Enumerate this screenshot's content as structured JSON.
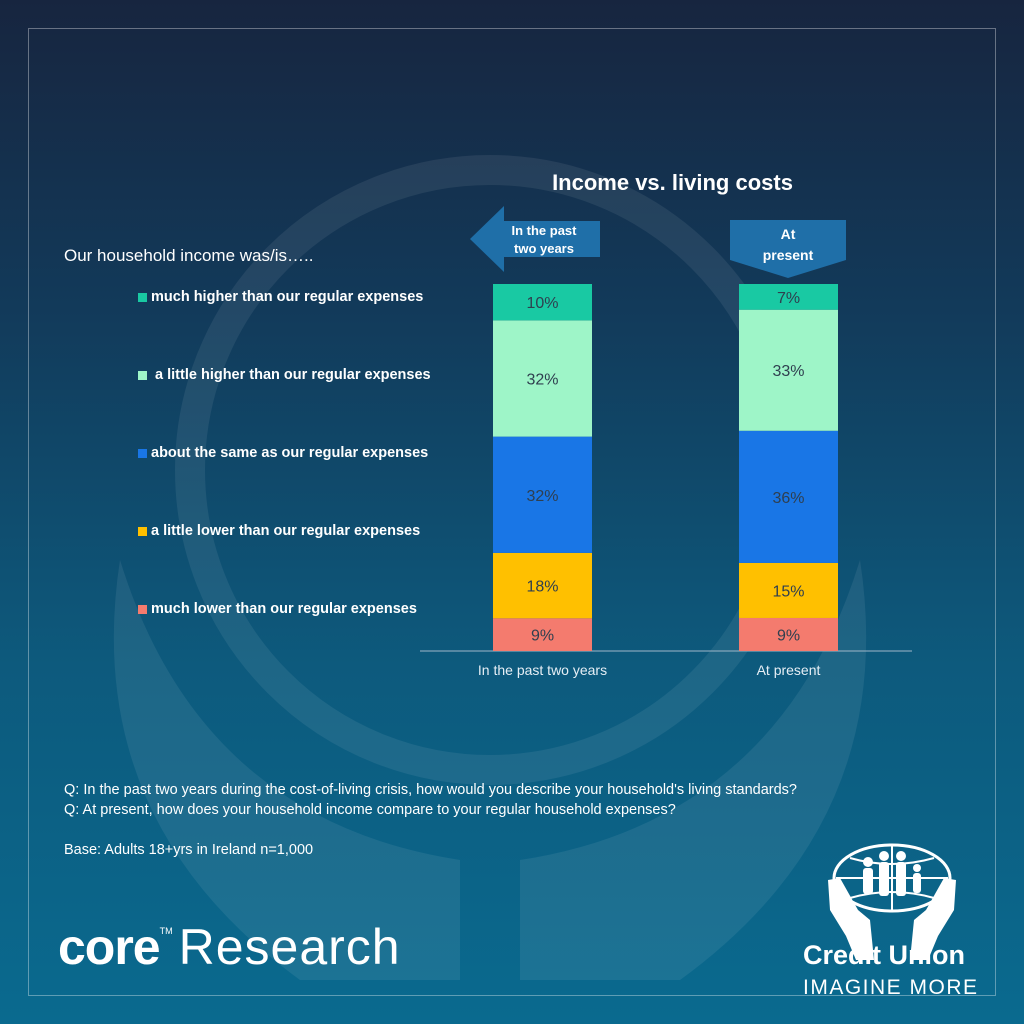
{
  "chart_data": {
    "type": "bar",
    "stacked": true,
    "title": "Income vs. living costs",
    "categories": [
      "In the past two years",
      "At present"
    ],
    "series": [
      {
        "name": "much lower than our regular expenses",
        "color": "#f47b6e",
        "values": [
          9,
          9
        ]
      },
      {
        "name": "a little lower than our regular expenses",
        "color": "#ffc000",
        "values": [
          18,
          15
        ]
      },
      {
        "name": "about the same as our regular expenses",
        "color": "#1976e6",
        "values": [
          32,
          36
        ]
      },
      {
        "name": "a little higher than our regular expenses",
        "color": "#9ef5c8",
        "values": [
          32,
          33
        ]
      },
      {
        "name": "much higher than our regular expenses",
        "color": "#19c9a3",
        "values": [
          10,
          7
        ]
      }
    ],
    "data_labels": [
      [
        "9%",
        "18%",
        "32%",
        "32%",
        "10%"
      ],
      [
        "9%",
        "15%",
        "36%",
        "33%",
        "7%"
      ]
    ],
    "ylim": [
      0,
      100
    ],
    "legend_position": "left",
    "grid": false
  },
  "legend": {
    "heading": "Our household income was/is…..",
    "items": [
      {
        "label": "much higher than our regular expenses",
        "color": "#19c9a3"
      },
      {
        "label": " a little higher than our regular expenses",
        "color": "#9ef5c8"
      },
      {
        "label": "about the same as our regular expenses",
        "color": "#1976e6"
      },
      {
        "label": "a little lower than our regular expenses",
        "color": "#ffc000"
      },
      {
        "label": "much lower than our regular expenses",
        "color": "#f47b6e"
      }
    ]
  },
  "arrows": {
    "past_line1": "In the past",
    "past_line2": "two years",
    "present_line1": "At",
    "present_line2": "present"
  },
  "notes": {
    "q1": "Q: In the past two years during the cost-of-living crisis, how would you describe your household's living standards?",
    "q2": "Q: At present, how does your household income compare to your regular household expenses?",
    "base": "Base: Adults 18+yrs in Ireland n=1,000"
  },
  "branding": {
    "core_word": "core",
    "tm": "TM",
    "research": "Research",
    "cu_name": "Credit Union",
    "cu_tag": "IMAGINE MORE"
  },
  "colors": {
    "arrow": "#1f6fa8",
    "axis_text": "#e6eef5"
  }
}
